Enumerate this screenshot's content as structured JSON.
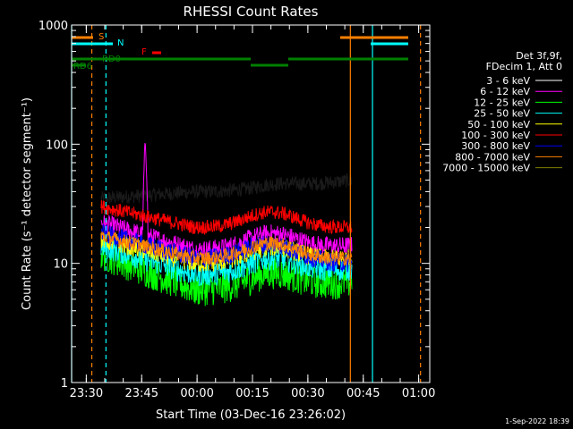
{
  "chart_data": {
    "type": "line",
    "title": "RHESSI Count Rates",
    "xlabel": "Start Time (03-Dec-16 23:26:02)",
    "ylabel": "Count Rate (s⁻¹ detector segment⁻¹)",
    "y_scale": "log",
    "ylim": [
      1,
      1000
    ],
    "xlim": [
      "23:26:02",
      "01:03:00"
    ],
    "x_ticks": [
      "23:30",
      "23:45",
      "00:00",
      "00:15",
      "00:30",
      "00:45",
      "01:00"
    ],
    "y_ticks": [
      "1",
      "10",
      "100",
      "1000"
    ],
    "legend_header": [
      "Det 3f,9f,",
      "FDecim 1, Att 0"
    ],
    "legend_position": "right",
    "series": [
      {
        "name": "3 - 6 keV",
        "color": "#000000",
        "start": 35,
        "mid": 40,
        "end": 50,
        "noise": 0.06
      },
      {
        "name": "6 - 12 keV",
        "color": "#ff00ff",
        "start": 22,
        "mid": 13,
        "end": 14,
        "noise": 0.08
      },
      {
        "name": "12 - 25 keV",
        "color": "#00ff00",
        "start": 12,
        "mid": 6,
        "end": 7,
        "noise": 0.14
      },
      {
        "name": "25 - 50 keV",
        "color": "#00ffff",
        "start": 14,
        "mid": 8,
        "end": 9,
        "noise": 0.1
      },
      {
        "name": "50 - 100 keV",
        "color": "#ffff00",
        "start": 16,
        "mid": 10,
        "end": 11,
        "noise": 0.08
      },
      {
        "name": "100 - 300 keV",
        "color": "#ff0000",
        "start": 30,
        "mid": 20,
        "end": 20,
        "noise": 0.06
      },
      {
        "name": "300 - 800 keV",
        "color": "#0000ff",
        "start": 18,
        "mid": 11,
        "end": 10,
        "noise": 0.08
      },
      {
        "name": "800 - 7000 keV",
        "color": "#ff8000",
        "start": 17,
        "mid": 11,
        "end": 11,
        "noise": 0.06
      },
      {
        "name": "7000 - 15000 keV",
        "color": "#808000",
        "start": 0,
        "mid": 0,
        "end": 0,
        "noise": 0
      }
    ],
    "flags": [
      {
        "label": "S",
        "color": "#ff8000"
      },
      {
        "label": "N",
        "color": "#00ffff"
      },
      {
        "label": "F",
        "color": "#ff0000"
      },
      {
        "label": "RD0",
        "color": "#008000"
      },
      {
        "label": "RD6",
        "color": "#008000"
      }
    ],
    "colors": {
      "axis": "#ffffff",
      "black_series_shown_as": "#000000"
    }
  },
  "footer": {
    "timestamp": "1-Sep-2022 18:39"
  }
}
